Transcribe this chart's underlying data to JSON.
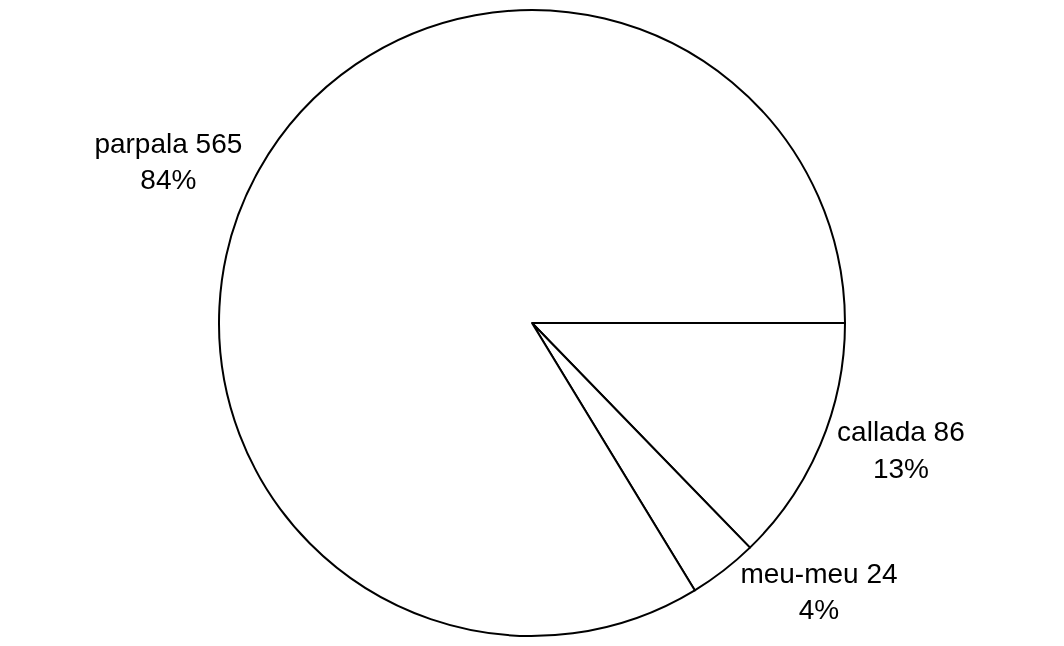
{
  "chart_data": {
    "type": "pie",
    "categories": [
      "callada 86\n13%",
      "meu-meu 24\n4%",
      "parpala 565\n84%"
    ],
    "values": [
      86,
      24,
      565
    ],
    "colors": [
      "#ffffff",
      "#ffffff",
      "#ffffff"
    ],
    "legend": false
  }
}
